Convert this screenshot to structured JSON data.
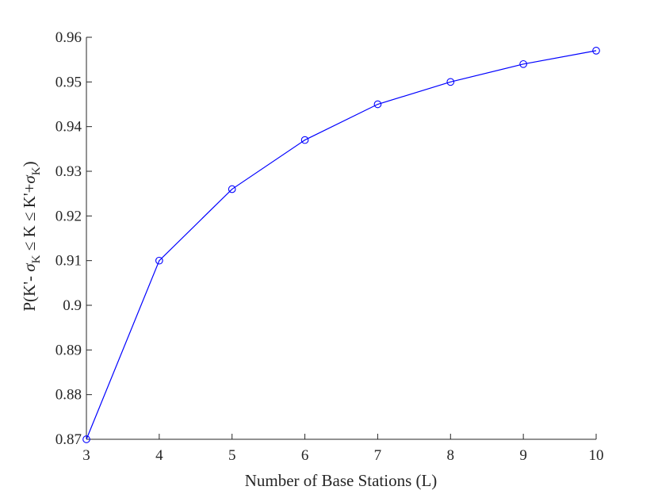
{
  "chart_data": {
    "type": "line",
    "title": "",
    "xlabel": "Number of Base Stations (L)",
    "ylabel": "P(K'- σ_K ≤ K ≤ K'+σ_K)",
    "ylabel_parts": {
      "p1": "P(K'- ",
      "sigma1": "σ",
      "sub1": "K",
      "p2": " ≤ K ≤ K'+",
      "sigma2": "σ",
      "sub2": "K",
      "p3": ")"
    },
    "xlim": [
      3,
      10
    ],
    "ylim": [
      0.87,
      0.96
    ],
    "xticks": [
      3,
      4,
      5,
      6,
      7,
      8,
      9,
      10
    ],
    "xtick_labels": [
      "3",
      "4",
      "5",
      "6",
      "7",
      "8",
      "9",
      "10"
    ],
    "yticks": [
      0.87,
      0.88,
      0.89,
      0.9,
      0.91,
      0.92,
      0.93,
      0.94,
      0.95,
      0.96
    ],
    "ytick_labels": [
      "0.87",
      "0.88",
      "0.89",
      "0.9",
      "0.91",
      "0.92",
      "0.93",
      "0.94",
      "0.95",
      "0.96"
    ],
    "grid": false,
    "legend": "none",
    "series": [
      {
        "color": "#0000ff",
        "marker": "circle",
        "x": [
          3,
          4,
          5,
          6,
          7,
          8,
          9,
          10
        ],
        "y": [
          0.87,
          0.91,
          0.926,
          0.937,
          0.945,
          0.95,
          0.954,
          0.957
        ]
      }
    ]
  }
}
